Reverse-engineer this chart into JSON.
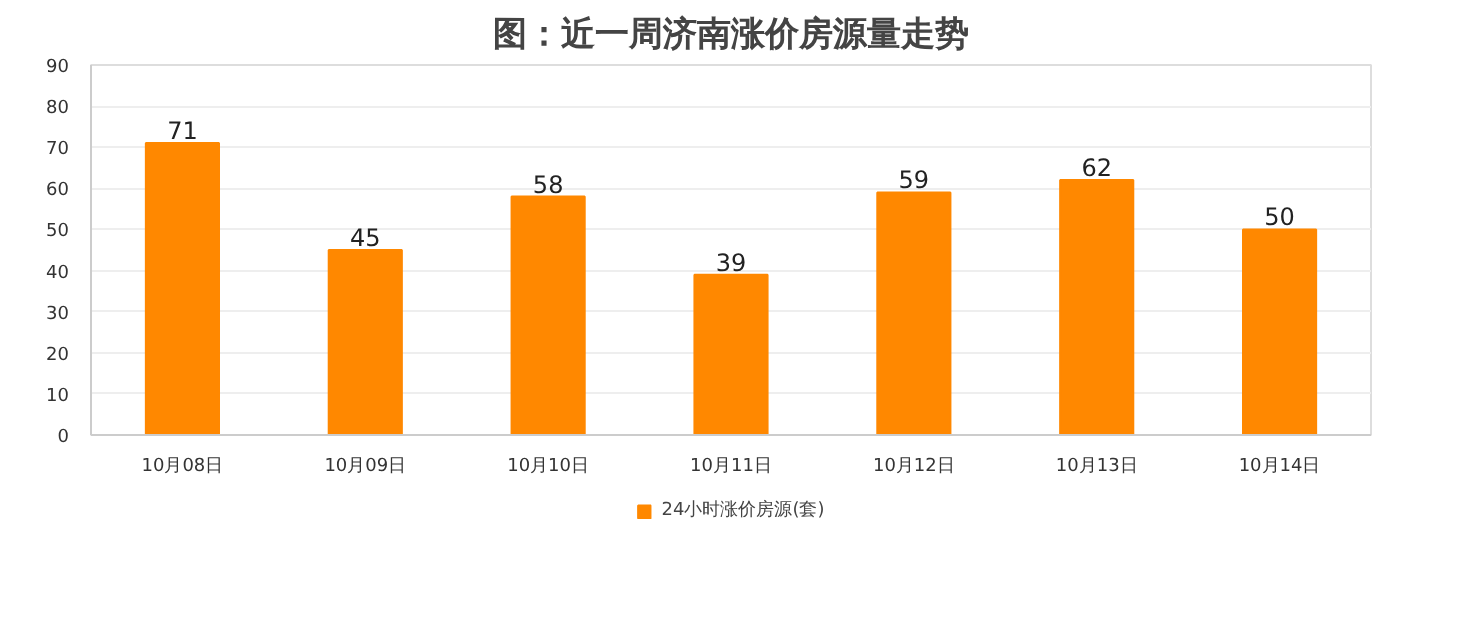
{
  "chart_data": {
    "type": "bar",
    "title": "图：近一周济南涨价房源量走势",
    "categories": [
      "10月08日",
      "10月09日",
      "10月10日",
      "10月11日",
      "10月12日",
      "10月13日",
      "10月14日"
    ],
    "series": [
      {
        "name": "24小时涨价房源(套)",
        "color": "#ff8800",
        "values": [
          71,
          45,
          58,
          39,
          59,
          62,
          50
        ]
      }
    ],
    "ylim": [
      0,
      90
    ],
    "yticks": [
      0,
      10,
      20,
      30,
      40,
      50,
      60,
      70,
      80,
      90
    ],
    "grid": "y",
    "legend": "bottom",
    "data_labels": true
  }
}
